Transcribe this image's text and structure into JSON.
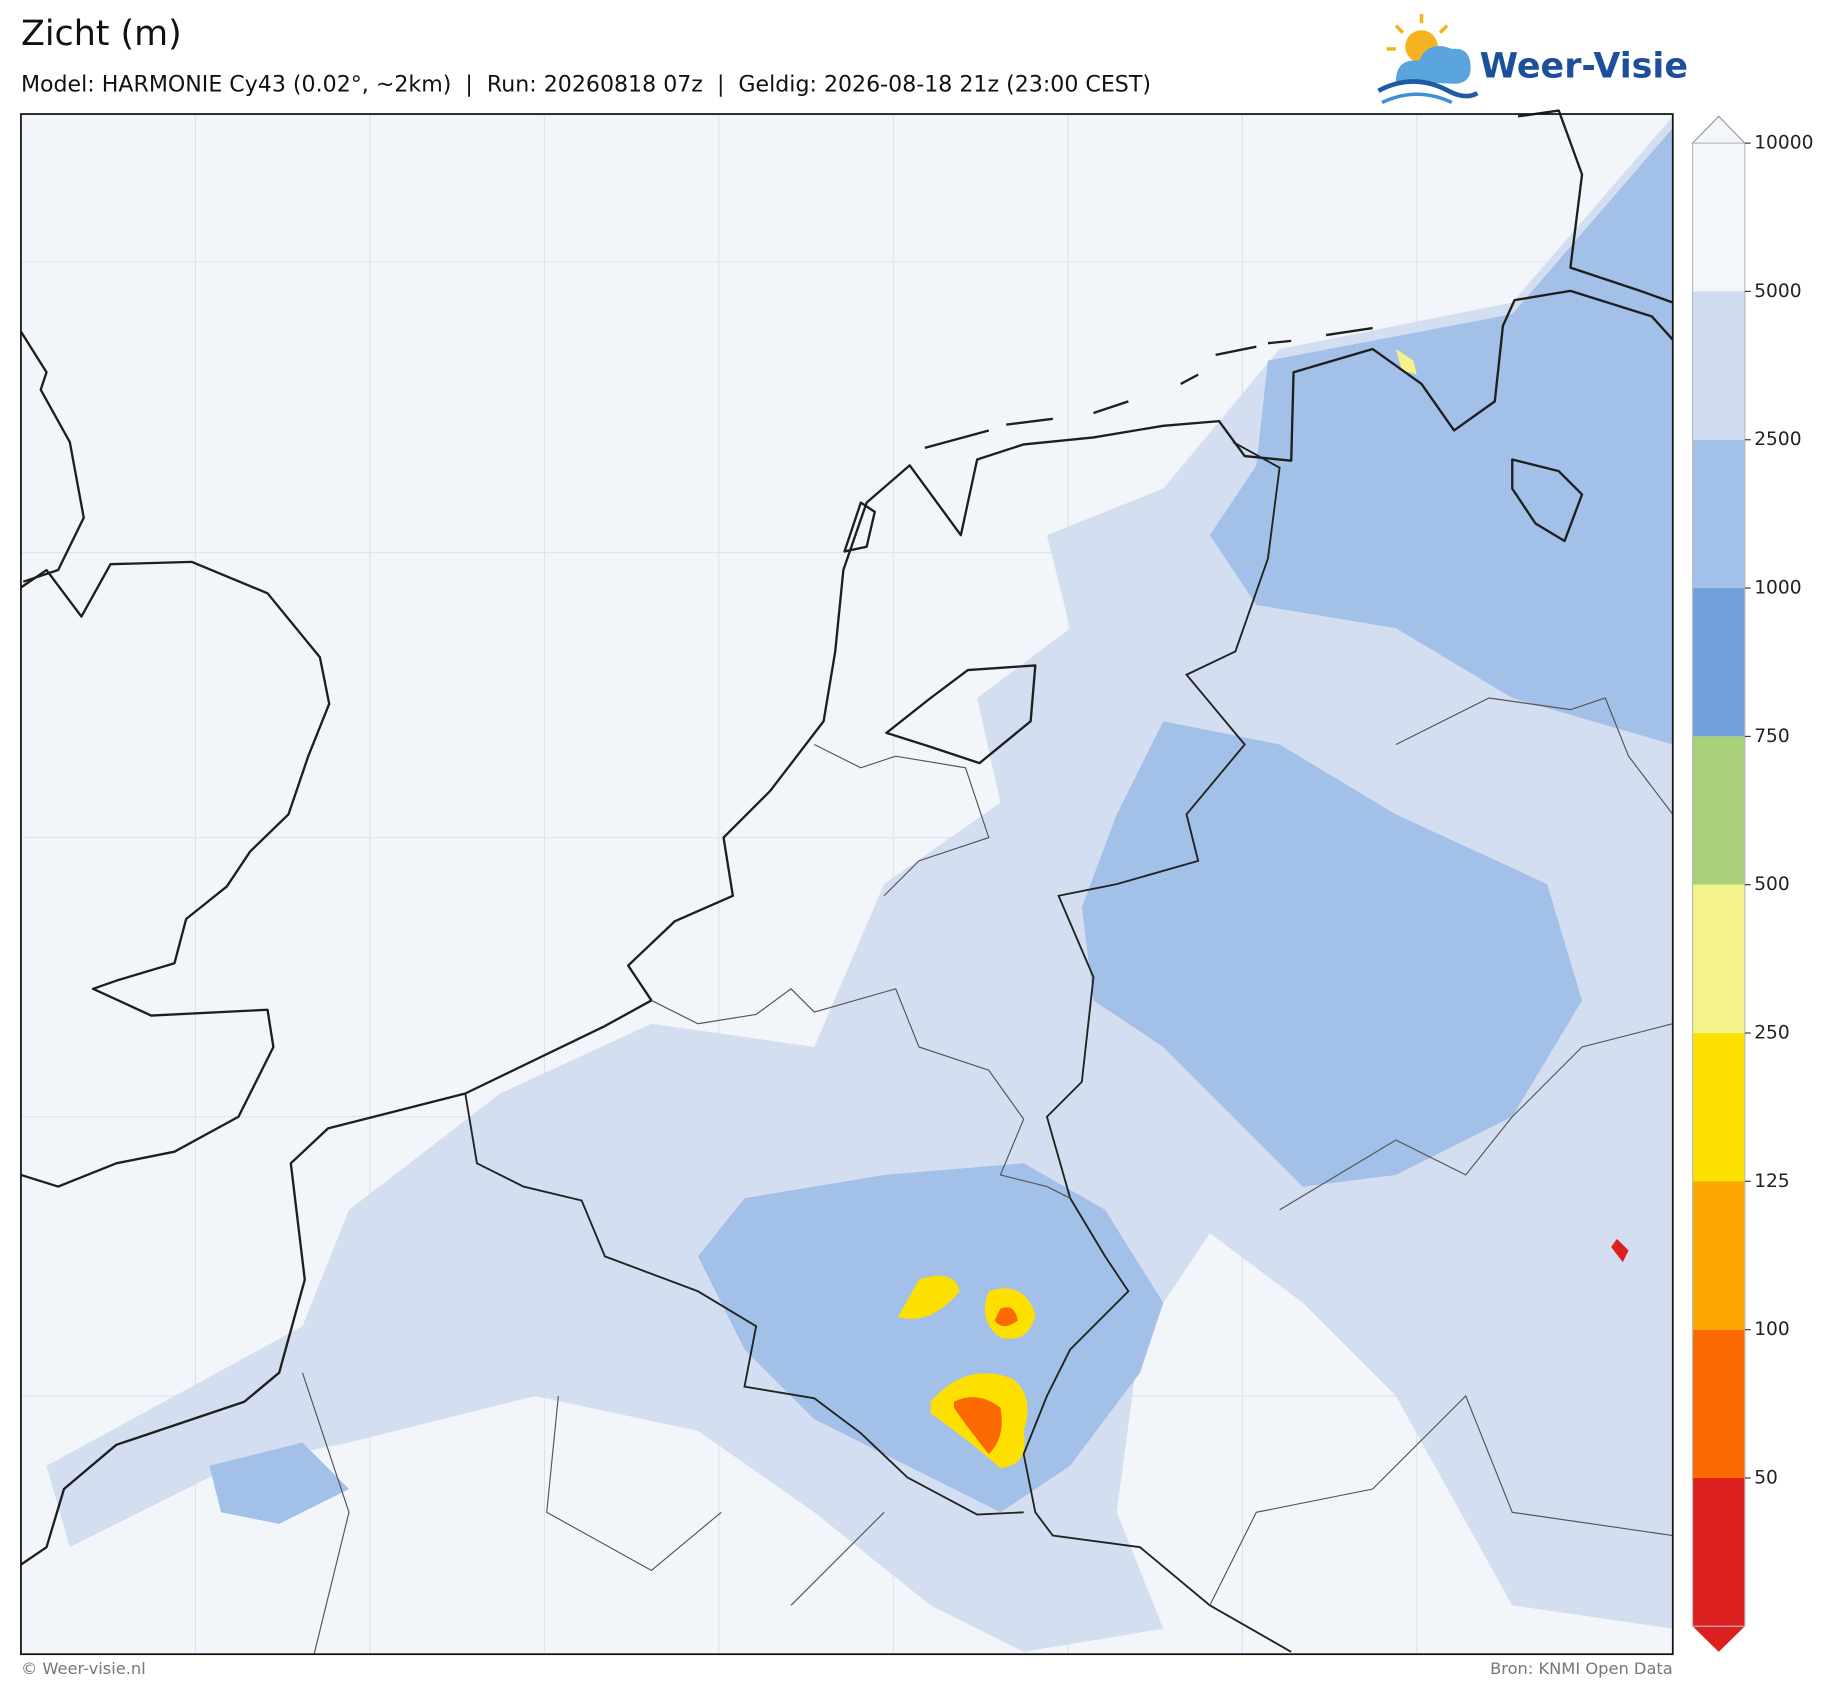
{
  "header": {
    "title": "Zicht (m)",
    "subtitle": "Model: HARMONIE Cy43 (0.02°, ~2km)  |  Run: 20260818 07z  |  Geldig: 2026-08-18 21z (23:00 CEST)"
  },
  "logo": {
    "text": "Weer-Visie"
  },
  "legend": {
    "ticks": [
      10000,
      5000,
      2500,
      1000,
      750,
      500,
      250,
      125,
      100,
      50
    ],
    "colors": [
      "#f3f6fb",
      "#f3f6fb",
      "#cfdcf0",
      "#a3c0e8",
      "#70a0d9",
      "#a8cf7a",
      "#f4f38a",
      "#fde000",
      "#fca800",
      "#fb6a00",
      "#dc2020"
    ]
  },
  "footer": {
    "left": "© Weer-visie.nl",
    "right": "Bron: KNMI Open Data"
  }
}
